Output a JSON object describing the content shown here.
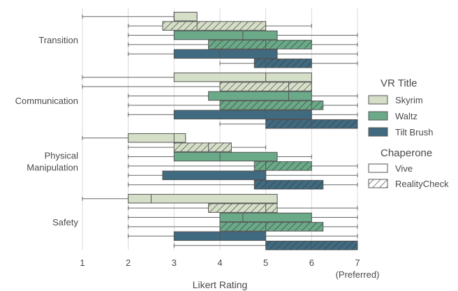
{
  "chart_data": {
    "type": "boxplot",
    "orientation": "horizontal",
    "xlabel": "Likert Rating",
    "xlim": [
      1,
      7
    ],
    "xticks": [
      "1",
      "2",
      "3",
      "4",
      "5",
      "6",
      "7"
    ],
    "xtick_note": "(Preferred)",
    "grid": true,
    "categories": [
      "Transition",
      "Communication",
      "Physical Manipulation",
      "Safety"
    ],
    "category_lines": [
      [
        "Transition"
      ],
      [
        "Communication"
      ],
      [
        "Physical",
        "Manipulation"
      ],
      [
        "Safety"
      ]
    ],
    "legend": {
      "placement": "right",
      "title_titles": "VR Title",
      "titles": [
        {
          "name": "Skyrim",
          "color": "#d5dfc8"
        },
        {
          "name": "Waltz",
          "color": "#6aaa88"
        },
        {
          "name": "Tilt Brush",
          "color": "#3f6a80"
        }
      ],
      "title_chaperone": "Chaperone",
      "chaperones": [
        {
          "name": "Vive",
          "hatch": false
        },
        {
          "name": "RealityCheck",
          "hatch": true
        }
      ]
    },
    "series": [
      {
        "title": "Skyrim",
        "chaperone": "Vive",
        "boxes": [
          {
            "min": 1,
            "q1": 3,
            "median": 3,
            "q3": 3.5,
            "max": 3.5
          },
          {
            "min": 1,
            "q1": 3,
            "median": 5,
            "q3": 6,
            "max": 6
          },
          {
            "min": 1,
            "q1": 2,
            "median": 3,
            "q3": 3.25,
            "max": 3.25
          },
          {
            "min": 1,
            "q1": 2,
            "median": 2.5,
            "q3": 5.25,
            "max": 5.25
          }
        ]
      },
      {
        "title": "Skyrim",
        "chaperone": "RealityCheck",
        "boxes": [
          {
            "min": 2,
            "q1": 2.75,
            "median": 3.5,
            "q3": 5,
            "max": 6
          },
          {
            "min": 1,
            "q1": 4,
            "median": 5.5,
            "q3": 6,
            "max": 6
          },
          {
            "min": 2,
            "q1": 3,
            "median": 3.75,
            "q3": 4.25,
            "max": 5
          },
          {
            "min": 2,
            "q1": 3.75,
            "median": 5,
            "q3": 5.25,
            "max": 7
          }
        ]
      },
      {
        "title": "Waltz",
        "chaperone": "Vive",
        "boxes": [
          {
            "min": 2,
            "q1": 3,
            "median": 4.5,
            "q3": 5.25,
            "max": 7
          },
          {
            "min": 2,
            "q1": 3.75,
            "median": 5.5,
            "q3": 6,
            "max": 7
          },
          {
            "min": 2,
            "q1": 3,
            "median": 4,
            "q3": 5.25,
            "max": 6
          },
          {
            "min": 2,
            "q1": 4,
            "median": 4.5,
            "q3": 6,
            "max": 7
          }
        ]
      },
      {
        "title": "Waltz",
        "chaperone": "RealityCheck",
        "boxes": [
          {
            "min": 2,
            "q1": 3.75,
            "median": 5,
            "q3": 6,
            "max": 7
          },
          {
            "min": 2,
            "q1": 4,
            "median": 6,
            "q3": 6.25,
            "max": 7
          },
          {
            "min": 2,
            "q1": 4.75,
            "median": 5,
            "q3": 6,
            "max": 7
          },
          {
            "min": 2,
            "q1": 4,
            "median": 5,
            "q3": 6.25,
            "max": 7
          }
        ]
      },
      {
        "title": "Tilt Brush",
        "chaperone": "Vive",
        "boxes": [
          {
            "min": 2,
            "q1": 3,
            "median": 4,
            "q3": 5.25,
            "max": 7
          },
          {
            "min": 2,
            "q1": 3,
            "median": 5,
            "q3": 6,
            "max": 7
          },
          {
            "min": 2,
            "q1": 2.75,
            "median": 5,
            "q3": 5,
            "max": 7
          },
          {
            "min": 2,
            "q1": 3,
            "median": 4,
            "q3": 5,
            "max": 7
          }
        ]
      },
      {
        "title": "Tilt Brush",
        "chaperone": "RealityCheck",
        "boxes": [
          {
            "min": 4,
            "q1": 4.75,
            "median": 5,
            "q3": 6,
            "max": 7
          },
          {
            "min": 4,
            "q1": 5,
            "median": 6,
            "q3": 7,
            "max": 7
          },
          {
            "min": 2,
            "q1": 4.75,
            "median": 5,
            "q3": 6.25,
            "max": 7
          },
          {
            "min": 3,
            "q1": 5,
            "median": 6,
            "q3": 7,
            "max": 7
          }
        ]
      }
    ]
  }
}
